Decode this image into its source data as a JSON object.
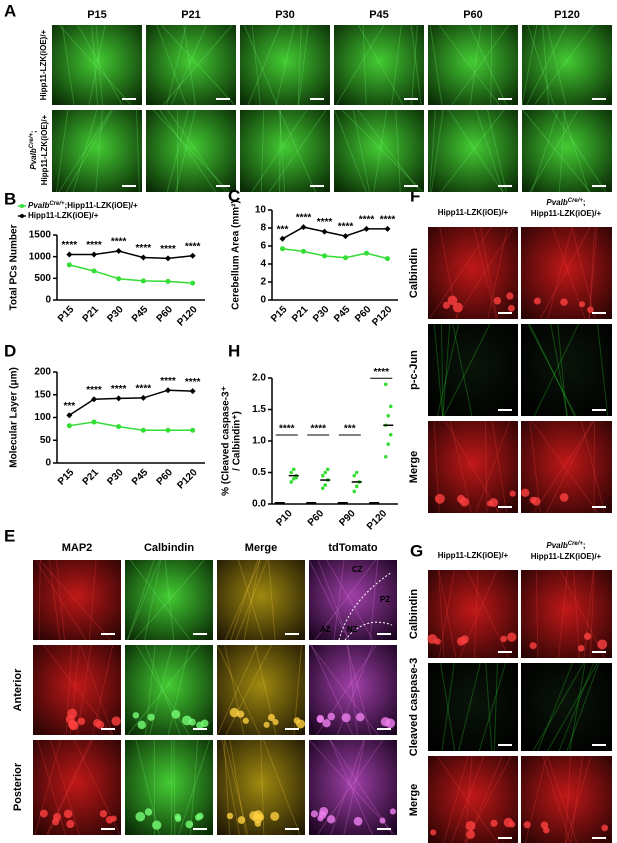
{
  "panel_A": {
    "label": "A",
    "columns": [
      "P15",
      "P21",
      "P30",
      "P45",
      "P60",
      "P120"
    ],
    "row_control": "Hipp11-LZK(iOE)/+",
    "row_mutant": {
      "gene": "Pvalb",
      "superscript": "Cre/+",
      "suffix": ";",
      "line2": "Hipp11-LZK(iOE)/+"
    }
  },
  "panel_E": {
    "label": "E",
    "columns": [
      "MAP2",
      "Calbindin",
      "Merge",
      "tdTomato"
    ],
    "rows": [
      "Anterior",
      "Posterior"
    ],
    "zones": [
      "CZ",
      "PZ",
      "AZ",
      "NZ"
    ]
  },
  "panel_F": {
    "label": "F",
    "col_control": "Hipp11-LZK(iOE)/+",
    "col_mutant": {
      "gene": "Pvalb",
      "superscript": "Cre/+",
      "suffix": ";",
      "line2": "Hipp11-LZK(iOE)/+"
    },
    "rows": [
      "Calbindin",
      "p-c-Jun",
      "Merge"
    ]
  },
  "panel_G": {
    "label": "G",
    "col_control": "Hipp11-LZK(iOE)/+",
    "col_mutant": {
      "gene": "Pvalb",
      "superscript": "Cre/+",
      "suffix": ";",
      "line2": "Hipp11-LZK(iOE)/+"
    },
    "rows": [
      "Calbindin",
      "Cleaved caspase-3",
      "Merge"
    ]
  },
  "chart_data": [
    {
      "type": "line",
      "label": "B",
      "ylabel": "Total PCs Number",
      "legend": true,
      "categories": [
        "P15",
        "P21",
        "P30",
        "P45",
        "P60",
        "P120"
      ],
      "ylim": [
        0,
        1500
      ],
      "yticks": [
        0,
        500,
        1000,
        1500
      ],
      "series": [
        {
          "name": "Pvalb",
          "name_superscript": "Cre/+",
          "name_suffix": ";Hipp11-LZK(iOE)/+",
          "color": "#33dd33",
          "values": [
            810,
            670,
            490,
            440,
            430,
            390
          ]
        },
        {
          "name": "Hipp11-LZK(iOE)/+",
          "color": "#000000",
          "values": [
            1050,
            1050,
            1130,
            980,
            960,
            1020
          ]
        }
      ],
      "annotations": [
        "****",
        "****",
        "****",
        "****",
        "****",
        "****"
      ]
    },
    {
      "type": "line",
      "label": "C",
      "ylabel": "Cerebellum Area (mm²)",
      "categories": [
        "P15",
        "P21",
        "P30",
        "P45",
        "P60",
        "P120"
      ],
      "ylim": [
        0,
        10
      ],
      "yticks": [
        0,
        2,
        4,
        6,
        8,
        10
      ],
      "series": [
        {
          "color": "#33dd33",
          "values": [
            5.7,
            5.4,
            4.9,
            4.7,
            5.2,
            4.6
          ]
        },
        {
          "color": "#000000",
          "values": [
            6.8,
            8.1,
            7.6,
            7.1,
            7.9,
            7.9
          ]
        }
      ],
      "annotations": [
        "***",
        "****",
        "****",
        "****",
        "****",
        "****"
      ]
    },
    {
      "type": "line",
      "label": "D",
      "ylabel": "Molecular Layer (μm)",
      "categories": [
        "P15",
        "P21",
        "P30",
        "P45",
        "P60",
        "P120"
      ],
      "ylim": [
        0,
        200
      ],
      "yticks": [
        0,
        50,
        100,
        150,
        200
      ],
      "series": [
        {
          "color": "#33dd33",
          "values": [
            82,
            90,
            80,
            72,
            72,
            72
          ]
        },
        {
          "color": "#000000",
          "values": [
            105,
            140,
            142,
            143,
            160,
            158
          ]
        }
      ],
      "annotations": [
        "***",
        "****",
        "****",
        "****",
        "****",
        "****"
      ]
    },
    {
      "type": "dot",
      "label": "H",
      "ylabel": [
        "% (Cleaved caspase-3⁺",
        "/ Calbindin⁺)"
      ],
      "categories": [
        "P10",
        "P60",
        "P90",
        "P120"
      ],
      "ylim": [
        0,
        2.0
      ],
      "yticks": [
        {
          "value": 0,
          "label": "0.0"
        },
        0.5,
        {
          "value": 1,
          "label": "1.0"
        },
        1.5,
        {
          "value": 2,
          "label": "2.0"
        }
      ],
      "series": [
        {
          "color": "#000000",
          "values": [
            0.02,
            0.02,
            0.02,
            0.02
          ]
        },
        {
          "color": "#33dd33",
          "values": [
            0.45,
            0.38,
            0.35,
            1.25
          ],
          "points": [
            [
              0.35,
              0.4,
              0.45,
              0.5,
              0.55,
              0.42
            ],
            [
              0.25,
              0.3,
              0.38,
              0.45,
              0.5,
              0.55
            ],
            [
              0.2,
              0.28,
              0.35,
              0.45,
              0.5
            ],
            [
              0.75,
              0.95,
              1.1,
              1.25,
              1.4,
              1.55,
              1.9
            ]
          ]
        }
      ],
      "annotations": [
        "****",
        "****",
        "***",
        "****"
      ]
    }
  ]
}
